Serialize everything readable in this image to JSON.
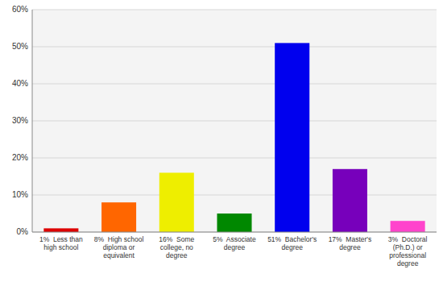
{
  "chart_data": {
    "type": "bar",
    "categories": [
      "1%  Less than\nhigh school",
      "8%  High school\ndiploma or\nequivalent",
      "16%  Some\ncollege, no\ndegree",
      "5%  Associate\ndegree",
      "51%  Bachelor's\ndegree",
      "17%  Master's\ndegree",
      "3%  Doctoral\n(Ph.D.) or\nprofessional\ndegree"
    ],
    "values": [
      1,
      8,
      16,
      5,
      51,
      17,
      3
    ],
    "colors": [
      "#dd0000",
      "#ff6600",
      "#eeee00",
      "#008800",
      "#0000ee",
      "#7700bb",
      "#ff44cc"
    ],
    "ylim": [
      0,
      60
    ],
    "yticks": [
      {
        "value": 0,
        "label": "0%"
      },
      {
        "value": 10,
        "label": "10%"
      },
      {
        "value": 20,
        "label": "20%"
      },
      {
        "value": 30,
        "label": "30%"
      },
      {
        "value": 40,
        "label": "40%"
      },
      {
        "value": 50,
        "label": "50%"
      },
      {
        "value": 60,
        "label": "60%"
      }
    ],
    "grid": true
  }
}
